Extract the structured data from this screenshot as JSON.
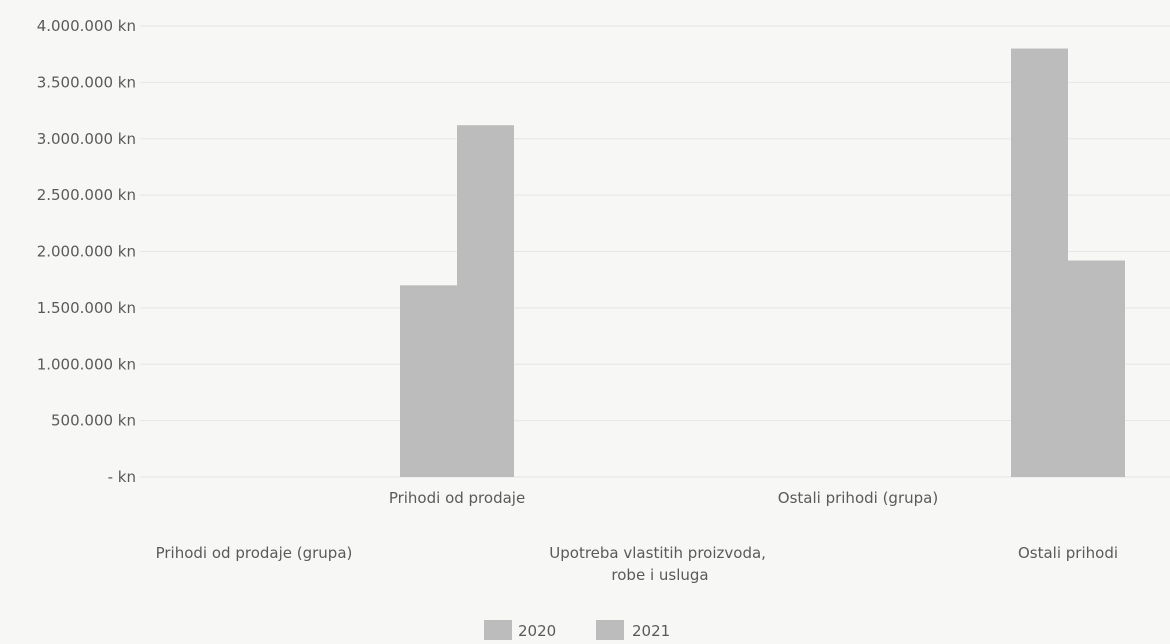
{
  "chart_data": {
    "type": "bar",
    "categories_row1": [
      "Prihodi od prodaje",
      "Ostali prihodi (grupa)"
    ],
    "categories_row2": [
      "Prihodi od prodaje (grupa)",
      "Upotreba vlastitih proizvoda, robe i usluga",
      "Ostali prihodi"
    ],
    "category_order": [
      "Prihodi od prodaje (grupa)",
      "Prihodi od prodaje",
      "Upotreba vlastitih proizvoda, robe i usluga",
      "Ostali prihodi (grupa)",
      "Ostali prihodi"
    ],
    "series": [
      {
        "name": "2020",
        "values": [
          0,
          1700000,
          0,
          0,
          3800000
        ]
      },
      {
        "name": "2021",
        "values": [
          0,
          3120000,
          0,
          0,
          1920000
        ]
      }
    ],
    "ylim": [
      0,
      4000000
    ],
    "y_ticks": [
      "- kn",
      "500.000 kn",
      "1.000.000 kn",
      "1.500.000 kn",
      "2.000.000 kn",
      "2.500.000 kn",
      "3.000.000 kn",
      "3.500.000 kn",
      "4.000.000 kn"
    ],
    "legend_position": "bottom-center",
    "grid": true,
    "colors": {
      "bar": "#bcbcbc",
      "grid": "#e6e6e6"
    }
  }
}
